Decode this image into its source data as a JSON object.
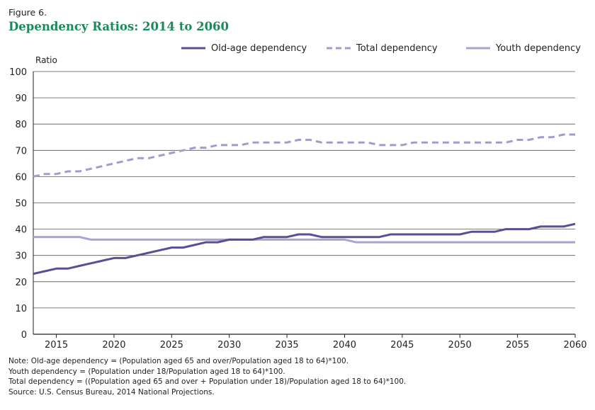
{
  "figure_label": "Figure 6.",
  "title": "Dependency Ratios: 2014 to 2060",
  "colors": {
    "old_age": "#5b4e96",
    "total": "#a39ccb",
    "youth": "#aaa3d0",
    "grid": "#555555",
    "axis": "#222222",
    "title_green": "#1b8a5a"
  },
  "chart_data": {
    "type": "line",
    "ylabel": "Ratio",
    "xlabel": "",
    "xlim": [
      2013,
      2060
    ],
    "ylim": [
      0,
      100
    ],
    "x_ticks": [
      2015,
      2020,
      2025,
      2030,
      2035,
      2040,
      2045,
      2050,
      2055,
      2060
    ],
    "y_ticks": [
      0,
      10,
      20,
      30,
      40,
      50,
      60,
      70,
      80,
      90,
      100
    ],
    "x": [
      2013,
      2014,
      2015,
      2016,
      2017,
      2018,
      2019,
      2020,
      2021,
      2022,
      2023,
      2024,
      2025,
      2026,
      2027,
      2028,
      2029,
      2030,
      2031,
      2032,
      2033,
      2034,
      2035,
      2036,
      2037,
      2038,
      2039,
      2040,
      2041,
      2042,
      2043,
      2044,
      2045,
      2046,
      2047,
      2048,
      2049,
      2050,
      2051,
      2052,
      2053,
      2054,
      2055,
      2056,
      2057,
      2058,
      2059,
      2060
    ],
    "series": [
      {
        "name": "Old-age dependency",
        "style": "solid",
        "values": [
          23,
          24,
          25,
          25,
          26,
          27,
          28,
          29,
          29,
          30,
          31,
          32,
          33,
          33,
          34,
          35,
          35,
          36,
          36,
          36,
          37,
          37,
          37,
          38,
          38,
          37,
          37,
          37,
          37,
          37,
          37,
          38,
          38,
          38,
          38,
          38,
          38,
          38,
          39,
          39,
          39,
          40,
          40,
          40,
          41,
          41,
          41,
          42
        ]
      },
      {
        "name": "Total dependency",
        "style": "dashed",
        "values": [
          60,
          61,
          61,
          62,
          62,
          63,
          64,
          65,
          66,
          67,
          67,
          68,
          69,
          70,
          71,
          71,
          72,
          72,
          72,
          73,
          73,
          73,
          73,
          74,
          74,
          73,
          73,
          73,
          73,
          73,
          72,
          72,
          72,
          73,
          73,
          73,
          73,
          73,
          73,
          73,
          73,
          73,
          74,
          74,
          75,
          75,
          76,
          76
        ]
      },
      {
        "name": "Youth dependency",
        "style": "solid",
        "values": [
          37,
          37,
          37,
          37,
          37,
          36,
          36,
          36,
          36,
          36,
          36,
          36,
          36,
          36,
          36,
          36,
          36,
          36,
          36,
          36,
          36,
          36,
          36,
          36,
          36,
          36,
          36,
          36,
          35,
          35,
          35,
          35,
          35,
          35,
          35,
          35,
          35,
          35,
          35,
          35,
          35,
          35,
          35,
          35,
          35,
          35,
          35,
          35
        ]
      }
    ],
    "legend_position": "top"
  },
  "notes": [
    "Note: Old-age dependency = (Population aged 65 and over/Population aged 18 to 64)*100.",
    "Youth dependency = (Population under 18/Population aged 18 to 64)*100.",
    "Total dependency = ((Population aged 65 and over + Population under 18)/Population aged 18 to 64)*100.",
    "Source: U.S. Census Bureau, 2014 National Projections."
  ]
}
